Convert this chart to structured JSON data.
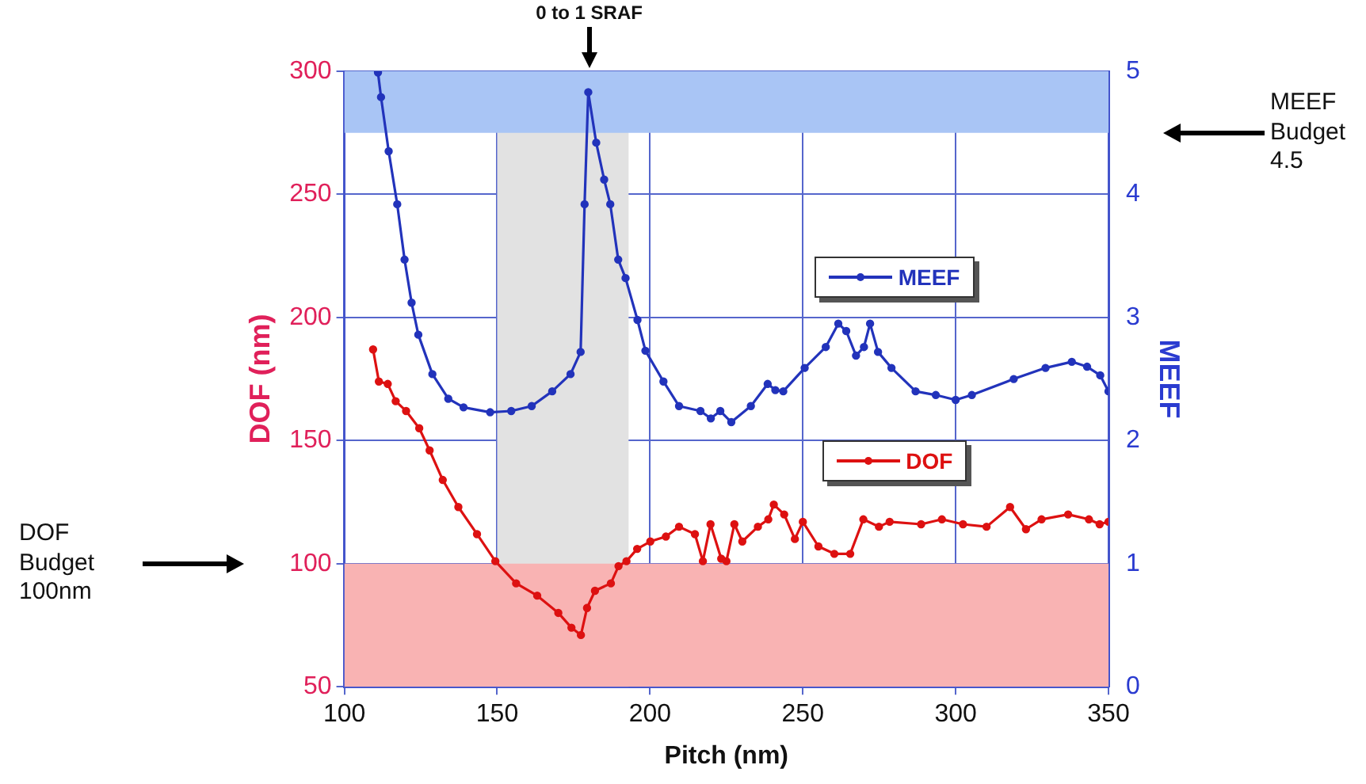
{
  "chart_data": {
    "type": "line",
    "xlabel": "Pitch (nm)",
    "ylabel": "DOF (nm)",
    "y2label": "MEEF",
    "xlim": [
      100,
      350
    ],
    "xticks": [
      100,
      150,
      200,
      250,
      300,
      350
    ],
    "ylim": [
      50,
      300
    ],
    "yticks": [
      50,
      100,
      150,
      200,
      250,
      300
    ],
    "y2lim": [
      0,
      5
    ],
    "y2ticks": [
      0,
      1,
      2,
      3,
      4,
      5
    ],
    "grid": true,
    "legend": "right",
    "marker": "circle",
    "line_style": "solid",
    "series": [
      {
        "name": "MEEF",
        "axis": "y2",
        "color": "#2233bb",
        "x": [
          111,
          112,
          114.5,
          117.3,
          119.7,
          122,
          124.2,
          128.8,
          134,
          139,
          147.7,
          154.6,
          161.3,
          168,
          174,
          177.3,
          178.6,
          179.8,
          182.4,
          185,
          187,
          189.6,
          192,
          195.9,
          198.5,
          204.4,
          209.5,
          216.5,
          219.9,
          223,
          226.6,
          233,
          238.5,
          241,
          243.6,
          250.6,
          257.5,
          261.6,
          264.2,
          267.4,
          270,
          272,
          274.6,
          279,
          286.9,
          293.5,
          300,
          305.3,
          319,
          329.4,
          338,
          343,
          347.3,
          350
        ],
        "values": [
          4.99,
          4.79,
          4.35,
          3.92,
          3.47,
          3.12,
          2.86,
          2.54,
          2.34,
          2.27,
          2.23,
          2.24,
          2.28,
          2.4,
          2.54,
          2.72,
          3.92,
          4.83,
          4.42,
          4.12,
          3.92,
          3.47,
          3.32,
          2.98,
          2.73,
          2.48,
          2.28,
          2.24,
          2.18,
          2.24,
          2.15,
          2.28,
          2.46,
          2.41,
          2.4,
          2.59,
          2.76,
          2.95,
          2.89,
          2.69,
          2.76,
          2.95,
          2.72,
          2.59,
          2.4,
          2.37,
          2.33,
          2.37,
          2.5,
          2.59,
          2.64,
          2.6,
          2.53,
          2.4
        ]
      },
      {
        "name": "DOF",
        "color": "#dd1111",
        "x": [
          109.4,
          111.3,
          114.2,
          116.8,
          120.2,
          124.5,
          127.9,
          132.2,
          137.3,
          143.4,
          149.4,
          156.2,
          163.1,
          170,
          174.3,
          177.4,
          179.4,
          182,
          187.2,
          189.7,
          192.3,
          195.8,
          200.1,
          205.2,
          209.5,
          214.7,
          217.3,
          219.8,
          223.3,
          225,
          227.6,
          230.2,
          235.3,
          238.7,
          240.5,
          243.9,
          247.4,
          250,
          255.1,
          260.3,
          265.5,
          269.8,
          274.9,
          278.4,
          288.7,
          295.5,
          302.4,
          310.1,
          317.8,
          323,
          328.1,
          336.8,
          343.6,
          347.1,
          350
        ],
        "values": [
          187,
          174,
          173,
          166,
          162,
          155,
          146,
          134,
          123,
          112,
          101,
          92,
          87,
          80,
          74,
          71,
          82,
          89,
          92,
          99,
          101,
          106,
          109,
          111,
          115,
          112,
          101,
          116,
          102,
          101,
          116,
          109,
          115,
          118,
          124,
          120,
          110,
          117,
          107,
          104,
          104,
          118,
          115,
          117,
          116,
          118,
          116,
          115,
          123,
          114,
          118,
          120,
          118,
          116,
          117
        ]
      }
    ],
    "bands": [
      {
        "axis": "y2",
        "from": 4.5,
        "to": 5,
        "color": "#a9c5f5"
      },
      {
        "axis": "y",
        "from": 50,
        "to": 100,
        "color": "#f9b3b3"
      },
      {
        "axis": "x",
        "from": 150,
        "to": 193,
        "color": "#e2e2e2"
      }
    ],
    "annotations": [
      {
        "text": "0 to 1 SRAF",
        "x": 180,
        "y": 300
      },
      "MEEF Budget 4.5",
      "DOF Budget 100nm"
    ]
  }
}
